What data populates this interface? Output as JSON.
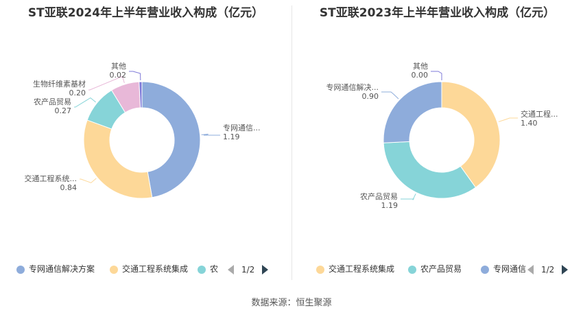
{
  "charts": {
    "left": {
      "title": "ST亚联2024年上半年营业收入构成（亿元）"
    },
    "right": {
      "title": "ST亚联2023年上半年营业收入构成（亿元）"
    }
  },
  "chart_data": [
    {
      "type": "pie",
      "title": "ST亚联2024年上半年营业收入构成（亿元）",
      "slices": [
        {
          "name": "专网通信解决方案",
          "label": "专网通信...",
          "value": 1.19,
          "color": "#8eacdb"
        },
        {
          "name": "交通工程系统集成",
          "label": "交通工程系统...",
          "value": 0.84,
          "color": "#fdd898"
        },
        {
          "name": "农产品贸易",
          "label": "农产品贸易",
          "value": 0.27,
          "color": "#86d4d8"
        },
        {
          "name": "生物纤维素基材",
          "label": "生物纤维素基材",
          "value": 0.2,
          "color": "#e8b8d8"
        },
        {
          "name": "其他",
          "label": "其他",
          "value": 0.02,
          "color": "#7e79d8"
        }
      ],
      "legend": {
        "placement": "bottom",
        "items": [
          "专网通信解决方案",
          "交通工程系统集成",
          "农"
        ],
        "page": "1/2"
      }
    },
    {
      "type": "pie",
      "title": "ST亚联2023年上半年营业收入构成（亿元）",
      "slices": [
        {
          "name": "交通工程系统集成",
          "label": "交通工程...",
          "value": 1.4,
          "color": "#fdd898"
        },
        {
          "name": "农产品贸易",
          "label": "农产品贸易",
          "value": 1.19,
          "color": "#86d4d8"
        },
        {
          "name": "专网通信解决方案",
          "label": "专网通信解决...",
          "value": 0.9,
          "color": "#8eacdb"
        },
        {
          "name": "其他",
          "label": "其他",
          "value": 0.0,
          "color": "#7e79d8"
        }
      ],
      "legend": {
        "placement": "bottom",
        "items": [
          "交通工程系统集成",
          "农产品贸易",
          "专网通信"
        ],
        "page": "1/2"
      }
    }
  ],
  "source": "数据来源：恒生聚源"
}
